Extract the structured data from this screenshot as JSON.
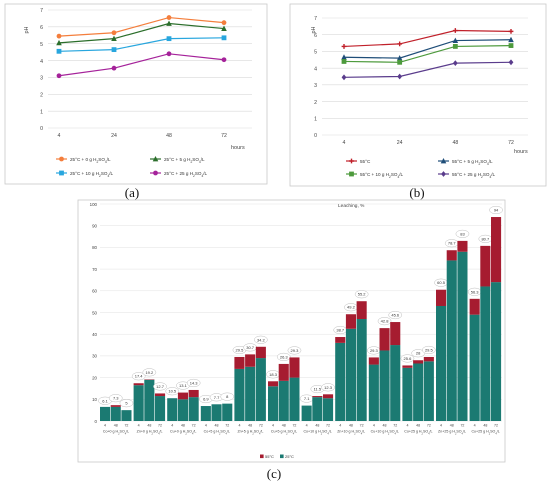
{
  "panel_labels": [
    "(a)",
    "(b)",
    "(c)"
  ],
  "chart_data": [
    {
      "type": "line",
      "panel": "(a)",
      "ylabel": "pH",
      "xlabel": "hours",
      "x": [
        "4",
        "24",
        "48",
        "72"
      ],
      "ylim": [
        0,
        7
      ],
      "yticks": [
        0,
        1,
        2,
        3,
        4,
        5,
        6,
        7
      ],
      "grid": true,
      "legend_position": "bottom",
      "series": [
        {
          "name": "25°C + 0 g H₂SO₄/L",
          "values": [
            5.45,
            5.65,
            6.55,
            6.25
          ],
          "color": "#f47e3c",
          "marker": "circle"
        },
        {
          "name": "25°C + 5 g H₂SO₄/L",
          "values": [
            5.05,
            5.3,
            6.2,
            5.9
          ],
          "color": "#2b6e2b",
          "marker": "triangle"
        },
        {
          "name": "25°C + 10 g H₂SO₄/L",
          "values": [
            4.55,
            4.65,
            5.3,
            5.35
          ],
          "color": "#28a6de",
          "marker": "square"
        },
        {
          "name": "25°C + 25 g H₂SO₄/L",
          "values": [
            3.1,
            3.55,
            4.4,
            4.05
          ],
          "color": "#a5229a",
          "marker": "circle"
        }
      ]
    },
    {
      "type": "line",
      "panel": "(b)",
      "ylabel": "pH",
      "xlabel": "hours",
      "x": [
        "4",
        "24",
        "48",
        "72"
      ],
      "ylim": [
        0,
        7
      ],
      "yticks": [
        0,
        1,
        2,
        3,
        4,
        5,
        6,
        7
      ],
      "grid": true,
      "legend_position": "bottom",
      "series": [
        {
          "name": "55°C",
          "values": [
            5.3,
            5.45,
            6.25,
            6.2
          ],
          "color": "#c0202a",
          "marker": "plus"
        },
        {
          "name": "55°C + 5 g H₂SO₄/L",
          "values": [
            4.65,
            4.6,
            5.65,
            5.7
          ],
          "color": "#1f4e79",
          "marker": "triangle"
        },
        {
          "name": "55°C + 10 g H₂SO₄/L",
          "values": [
            4.4,
            4.35,
            5.3,
            5.35
          ],
          "color": "#4d9a3c",
          "marker": "square"
        },
        {
          "name": "55°C + 25 g H₂SO₄/L",
          "values": [
            3.45,
            3.5,
            4.3,
            4.35
          ],
          "color": "#5a3c8c",
          "marker": "diamond"
        }
      ]
    },
    {
      "type": "bar",
      "panel": "(c)",
      "stacked": true,
      "ylabel": "Leaching, %",
      "ylim": [
        0,
        100
      ],
      "yticks": [
        0,
        10,
        20,
        30,
        40,
        50,
        60,
        70,
        80,
        90,
        100
      ],
      "grid": true,
      "legend_position": "bottom",
      "series_names": [
        "25°C",
        "55°C"
      ],
      "colors": {
        "25°C": "#1b7a72",
        "55°C": "#a61c30"
      },
      "time_labels": [
        "4",
        "48",
        "72"
      ],
      "groups": [
        {
          "label": "Co+0 g H₂SO₄/L",
          "bars": [
            [
              6.5,
              6.1
            ],
            [
              6.5,
              7.3
            ],
            [
              5,
              5
            ]
          ]
        },
        {
          "label": "Zn+0 g H₂SO₄/L",
          "bars": [
            [
              16.5,
              17.4
            ],
            [
              19,
              19.2
            ],
            [
              11.5,
              12.7
            ]
          ]
        },
        {
          "label": "Cu+0 g H₂SO₄/L",
          "bars": [
            [
              10.5,
              10.5
            ],
            [
              10,
              13.1
            ],
            [
              11,
              14.3
            ]
          ]
        },
        {
          "label": "Co+5 g H₂SO₄/L",
          "bars": [
            [
              6.9,
              6.9
            ],
            [
              7.7,
              7.7
            ],
            [
              8,
              8
            ]
          ]
        },
        {
          "label": "Zn+5 g H₂SO₄/L",
          "bars": [
            [
              24,
              29.5
            ],
            [
              25,
              30.7
            ],
            [
              29,
              34.2
            ]
          ]
        },
        {
          "label": "Cu+5 g H₂SO₄/L",
          "bars": [
            [
              16,
              18.3
            ],
            [
              18.5,
              26.3
            ],
            [
              20,
              29.3
            ]
          ]
        },
        {
          "label": "Co+10 g H₂SO₄/L",
          "bars": [
            [
              7.1,
              7.1
            ],
            [
              11,
              11.5
            ],
            [
              10.5,
              12.3
            ]
          ]
        },
        {
          "label": "Zn+10 g H₂SO₄/L",
          "bars": [
            [
              36,
              38.7
            ],
            [
              42.5,
              49.2
            ],
            [
              47,
              55.2
            ]
          ]
        },
        {
          "label": "Cu+10 g H₂SO₄/L",
          "bars": [
            [
              26,
              29.3
            ],
            [
              32.5,
              42.8
            ],
            [
              35,
              45.6
            ]
          ]
        },
        {
          "label": "Co+25 g H₂SO₄/L",
          "bars": [
            [
              24.5,
              25.6
            ],
            [
              26.5,
              28
            ],
            [
              27.5,
              29.5
            ]
          ]
        },
        {
          "label": "Zn+25 g H₂SO₄/L",
          "bars": [
            [
              53,
              60.5
            ],
            [
              74,
              78.7
            ],
            [
              78,
              83
            ]
          ]
        },
        {
          "label": "Cu+25 g H₂SO₄/L",
          "bars": [
            [
              49,
              56.3
            ],
            [
              62,
              80.7
            ],
            [
              64,
              94
            ]
          ]
        }
      ]
    }
  ]
}
